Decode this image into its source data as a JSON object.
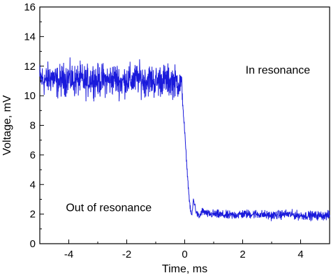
{
  "chart_data": {
    "type": "line",
    "title": "",
    "xlabel": "Time, ms",
    "ylabel": "Voltage, mV",
    "xlim": [
      -5,
      5
    ],
    "ylim": [
      0,
      16
    ],
    "xticks": [
      -4,
      -2,
      0,
      2,
      4
    ],
    "yticks": [
      0,
      2,
      4,
      6,
      8,
      10,
      12,
      14,
      16
    ],
    "grid": false,
    "legend": "none",
    "series": [
      {
        "color": "#1a1adb",
        "x": [
          -5.0,
          -4.8,
          -4.6,
          -4.4,
          -4.2,
          -4.0,
          -3.8,
          -3.6,
          -3.4,
          -3.2,
          -3.0,
          -2.8,
          -2.6,
          -2.4,
          -2.2,
          -2.0,
          -1.8,
          -1.6,
          -1.4,
          -1.2,
          -1.0,
          -0.8,
          -0.6,
          -0.4,
          -0.2,
          -0.1,
          -0.05,
          0.0,
          0.05,
          0.1,
          0.15,
          0.2,
          0.25,
          0.3,
          0.35,
          0.4,
          0.5,
          0.6,
          0.8,
          1.0,
          1.5,
          2.0,
          2.5,
          3.0,
          3.5,
          4.0,
          4.5,
          5.0
        ],
        "y": [
          11.2,
          11.0,
          11.3,
          10.9,
          11.1,
          11.2,
          11.0,
          11.1,
          10.9,
          11.2,
          11.0,
          11.1,
          11.0,
          11.2,
          10.9,
          11.1,
          11.0,
          11.2,
          11.0,
          11.1,
          10.9,
          11.1,
          11.0,
          11.0,
          10.9,
          10.7,
          9.0,
          7.5,
          6.0,
          4.5,
          3.2,
          2.2,
          1.9,
          3.0,
          2.6,
          2.1,
          1.8,
          2.2,
          2.0,
          2.0,
          1.9,
          2.0,
          2.0,
          1.9,
          2.0,
          1.9,
          1.9,
          1.9
        ],
        "noise_amplitude": [
          1.6,
          1.6,
          1.6,
          1.6,
          1.6,
          1.6,
          1.6,
          1.6,
          1.6,
          1.6,
          1.6,
          1.6,
          1.6,
          1.6,
          1.6,
          1.6,
          1.6,
          1.6,
          1.6,
          1.6,
          1.6,
          1.6,
          1.6,
          1.6,
          1.6,
          1.0,
          0.6,
          0.4,
          0.3,
          0.3,
          0.3,
          0.3,
          0.3,
          0.3,
          0.3,
          0.35,
          0.35,
          0.4,
          0.4,
          0.45,
          0.45,
          0.45,
          0.45,
          0.45,
          0.45,
          0.45,
          0.45,
          0.45
        ]
      }
    ],
    "annotations": [
      {
        "text": "In resonance",
        "x": 2.1,
        "y": 11.5
      },
      {
        "text": "Out of resonance",
        "x": -4.1,
        "y": 2.2
      }
    ]
  }
}
